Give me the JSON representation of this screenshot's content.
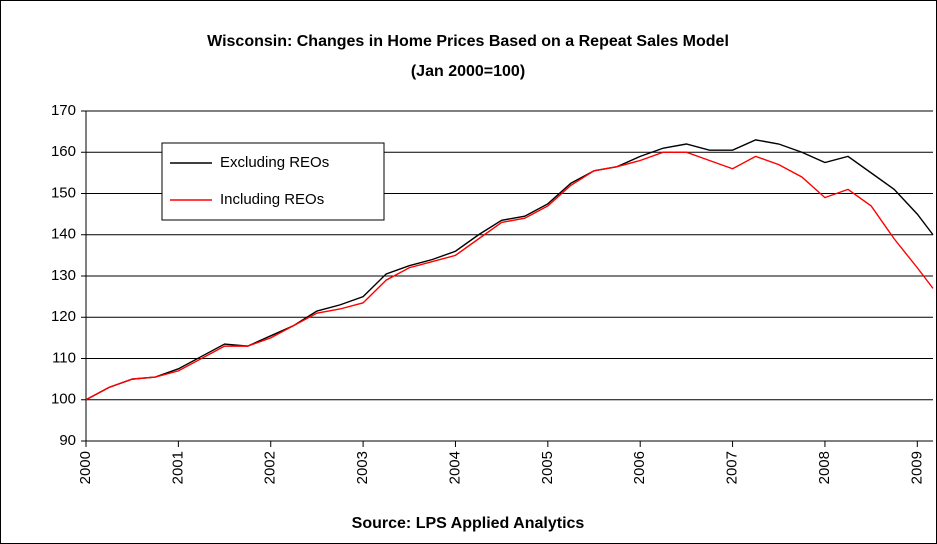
{
  "chart_data": {
    "type": "line",
    "title": "Wisconsin: Changes in Home Prices Based on a Repeat Sales Model",
    "subtitle": "(Jan 2000=100)",
    "x_label": "Source: LPS Applied Analytics",
    "x": [
      2000,
      2000.25,
      2000.5,
      2000.75,
      2001,
      2001.25,
      2001.5,
      2001.75,
      2002,
      2002.25,
      2002.5,
      2002.75,
      2003,
      2003.25,
      2003.5,
      2003.75,
      2004,
      2004.25,
      2004.5,
      2004.75,
      2005,
      2005.25,
      2005.5,
      2005.75,
      2006,
      2006.25,
      2006.5,
      2006.75,
      2007,
      2007.25,
      2007.5,
      2007.75,
      2008,
      2008.25,
      2008.5,
      2008.75,
      2009,
      2009.17
    ],
    "series": [
      {
        "name": "Excluding REOs",
        "color": "#000000",
        "values": [
          100,
          103,
          105,
          105.5,
          107.5,
          110.5,
          113.5,
          113,
          115.5,
          118,
          121.5,
          123,
          125,
          130.5,
          132.5,
          134,
          136,
          140,
          143.5,
          144.5,
          147.5,
          152.5,
          155.5,
          156.5,
          159,
          161,
          162,
          160.5,
          160.5,
          163,
          162,
          160,
          157.5,
          159,
          155,
          151,
          145,
          140
        ]
      },
      {
        "name": "Including REOs",
        "color": "#ff0000",
        "values": [
          100,
          103,
          105,
          105.5,
          107,
          110,
          113,
          113,
          115,
          118,
          121,
          122,
          123.5,
          129,
          132,
          133.5,
          135,
          139,
          143,
          144,
          147,
          152,
          155.5,
          156.5,
          158,
          160,
          160,
          158,
          156,
          159,
          157,
          154,
          149,
          151,
          147,
          139,
          132,
          127
        ]
      }
    ],
    "xlim": [
      2000,
      2009.17
    ],
    "xticks": [
      2000,
      2001,
      2002,
      2003,
      2004,
      2005,
      2006,
      2007,
      2008,
      2009
    ],
    "ylim": [
      90,
      170
    ],
    "yticks": [
      90,
      100,
      110,
      120,
      130,
      140,
      150,
      160,
      170
    ],
    "grid": true,
    "legend": "upper left"
  }
}
